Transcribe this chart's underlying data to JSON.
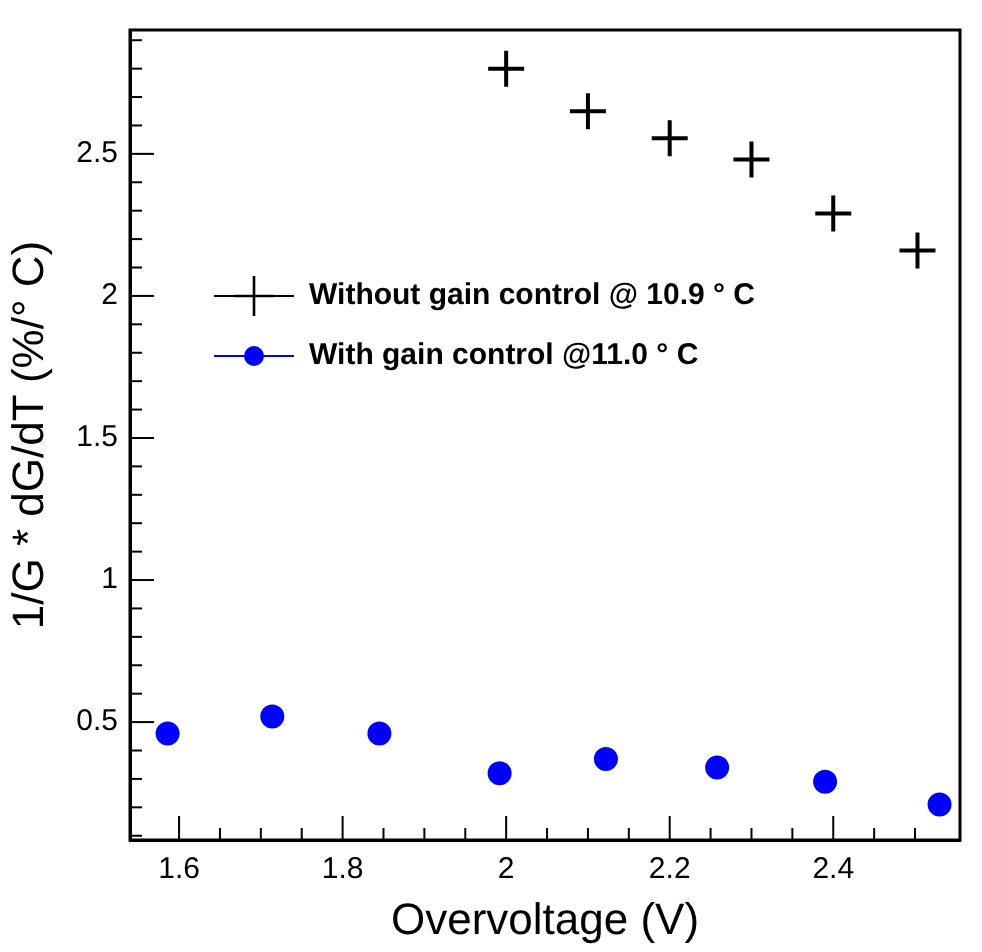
{
  "chart_data": {
    "type": "scatter",
    "xlabel": "Overvoltage (V)",
    "ylabel": "1/G * dG/dT (%/° C)",
    "xlim": [
      1.54,
      2.555
    ],
    "ylim": [
      0.085,
      2.936
    ],
    "xticks": [
      1.6,
      {
        "value": 1.65,
        "label": null
      },
      {
        "value": 1.7,
        "label": null
      },
      {
        "value": 1.75,
        "label": null
      },
      1.8,
      {
        "value": 1.85,
        "label": null
      },
      {
        "value": 1.9,
        "label": null
      },
      {
        "value": 1.95,
        "label": null
      },
      2,
      {
        "value": 2.05,
        "label": null
      },
      {
        "value": 2.1,
        "label": null
      },
      {
        "value": 2.15,
        "label": null
      },
      2.2,
      {
        "value": 2.25,
        "label": null
      },
      {
        "value": 2.3,
        "label": null
      },
      {
        "value": 2.35,
        "label": null
      },
      2.4,
      {
        "value": 2.45,
        "label": null
      },
      {
        "value": 2.5,
        "label": null
      }
    ],
    "yticks": [
      {
        "value": 0.1,
        "label": null
      },
      {
        "value": 0.2,
        "label": null
      },
      {
        "value": 0.3,
        "label": null
      },
      {
        "value": 0.4,
        "label": null
      },
      0.5,
      {
        "value": 0.6,
        "label": null
      },
      {
        "value": 0.7,
        "label": null
      },
      {
        "value": 0.8,
        "label": null
      },
      {
        "value": 0.9,
        "label": null
      },
      1,
      {
        "value": 1.1,
        "label": null
      },
      {
        "value": 1.2,
        "label": null
      },
      {
        "value": 1.3,
        "label": null
      },
      {
        "value": 1.4,
        "label": null
      },
      1.5,
      {
        "value": 1.6,
        "label": null
      },
      {
        "value": 1.7,
        "label": null
      },
      {
        "value": 1.8,
        "label": null
      },
      {
        "value": 1.9,
        "label": null
      },
      2,
      {
        "value": 2.1,
        "label": null
      },
      {
        "value": 2.2,
        "label": null
      },
      {
        "value": 2.3,
        "label": null
      },
      {
        "value": 2.4,
        "label": null
      },
      2.5,
      {
        "value": 2.6,
        "label": null
      },
      {
        "value": 2.7,
        "label": null
      },
      {
        "value": 2.8,
        "label": null
      },
      {
        "value": 2.9,
        "label": null
      }
    ],
    "grid": false,
    "legend": "top left",
    "series": [
      {
        "name": "Without gain control @ 10.9 ° C",
        "color": "#000000",
        "marker": "cross",
        "x": [
          2.0,
          2.1,
          2.2,
          2.3,
          2.4,
          2.503
        ],
        "values": [
          2.8,
          2.65,
          2.555,
          2.48,
          2.29,
          2.16
        ]
      },
      {
        "name": "With gain control @11.0 ° C",
        "color": "#0000ff",
        "marker": "circle",
        "x": [
          1.586,
          1.714,
          1.845,
          1.992,
          2.122,
          2.258,
          2.39,
          2.53
        ],
        "values": [
          0.46,
          0.52,
          0.46,
          0.32,
          0.37,
          0.34,
          0.29,
          0.21
        ]
      }
    ]
  }
}
